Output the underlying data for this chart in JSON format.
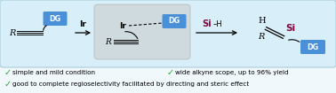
{
  "bg_color": "#f0f8fc",
  "scheme_box_color": "#d8eef8",
  "scheme_box_edge": "#aaccdd",
  "inter_box_color": "#c8c8c8",
  "inter_box_edge": "#aaaaaa",
  "dg_box_color": "#4a90d9",
  "dg_text_color": "#ffffff",
  "si_text_color": "#8b0045",
  "check_color": "#22aa22",
  "bullet1": "simple and mild condition",
  "bullet2": "good to complete regioselectivity facilitated by directing and steric effect",
  "bullet3": "wide alkyne scope, up to 96% yield",
  "r_label": "R",
  "dg_label": "DG",
  "ir_label": "Ir",
  "si_label": "Si",
  "h_label": "H"
}
